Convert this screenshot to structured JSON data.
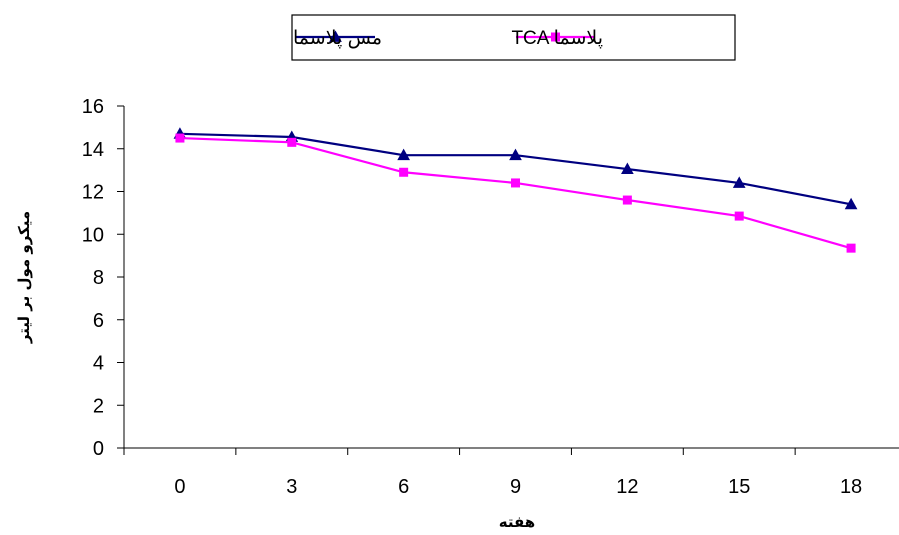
{
  "chart_data": {
    "type": "line",
    "categories": [
      "0",
      "3",
      "6",
      "9",
      "12",
      "15",
      "18"
    ],
    "x": [
      0,
      3,
      6,
      9,
      12,
      15,
      18
    ],
    "series": [
      {
        "name": "مس پلاسما",
        "values": [
          14.7,
          14.55,
          13.7,
          13.7,
          13.05,
          12.4,
          11.4
        ],
        "color": "#000080",
        "marker": "triangle"
      },
      {
        "name": "TCA پلاسما",
        "values": [
          14.5,
          14.3,
          12.9,
          12.4,
          11.6,
          10.85,
          9.35
        ],
        "color": "#ff00ff",
        "marker": "square"
      }
    ],
    "xlabel": "هفته",
    "ylabel": "میکرو مول بر لیتر",
    "ylim": [
      0,
      16
    ],
    "yticks": [
      0,
      2,
      4,
      6,
      8,
      10,
      12,
      14,
      16
    ],
    "grid": false,
    "legend_position": "top"
  }
}
